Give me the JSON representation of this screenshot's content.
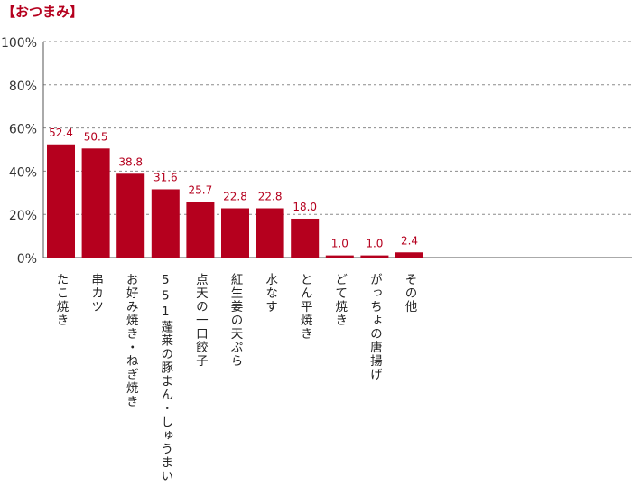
{
  "chart_data": {
    "type": "bar",
    "title": "【おつまみ】",
    "categories": [
      "たこ焼き",
      "串カツ",
      "お好み焼き・ねぎ焼き",
      "551蓬莱の豚まん・しゅうまい",
      "点天の一口餃子",
      "紅生姜の天ぷら",
      "水なす",
      "とん平焼き",
      "どて焼き",
      "がっちょの唐揚げ",
      "その他"
    ],
    "values": [
      52.4,
      50.5,
      38.8,
      31.6,
      25.7,
      22.8,
      22.8,
      18.0,
      1.0,
      1.0,
      2.4
    ],
    "value_labels": [
      "52.4",
      "50.5",
      "38.8",
      "31.6",
      "25.7",
      "22.8",
      "22.8",
      "18.0",
      "1.0",
      "1.0",
      "2.4"
    ],
    "ylim": [
      0,
      100
    ],
    "yticks": [
      "0%",
      "20%",
      "40%",
      "60%",
      "80%",
      "100%"
    ],
    "grid": true,
    "bar_color": "#b5001e",
    "label_color": "#b5001e"
  }
}
